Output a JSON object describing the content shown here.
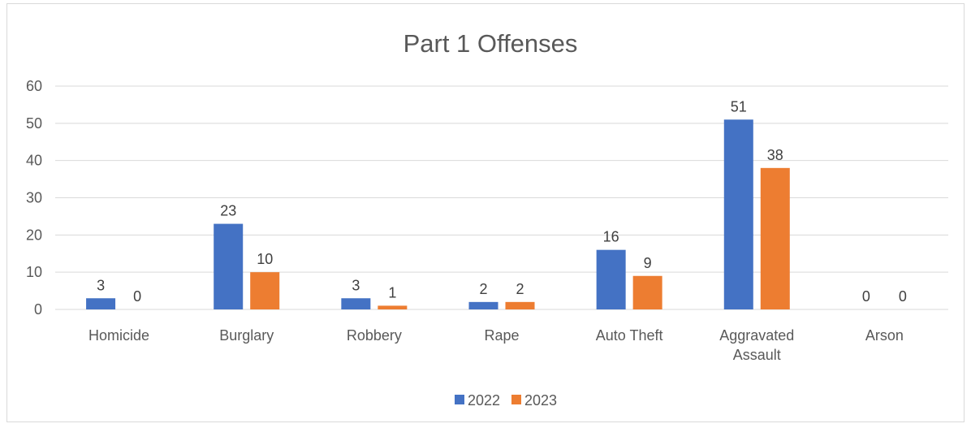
{
  "chart_data": {
    "type": "bar",
    "title": "Part 1 Offenses",
    "xlabel": "",
    "ylabel": "",
    "categories": [
      [
        "Homicide"
      ],
      [
        "Burglary"
      ],
      [
        "Robbery"
      ],
      [
        "Rape"
      ],
      [
        "Auto Theft"
      ],
      [
        "Aggravated",
        "Assault"
      ],
      [
        "Arson"
      ]
    ],
    "series": [
      {
        "name": "2022",
        "color": "#4472C4",
        "values": [
          3,
          23,
          3,
          2,
          16,
          51,
          0
        ]
      },
      {
        "name": "2023",
        "color": "#ED7D31",
        "values": [
          0,
          10,
          1,
          2,
          9,
          38,
          0
        ]
      }
    ],
    "ylim": [
      0,
      60
    ],
    "yticks": [
      0,
      10,
      20,
      30,
      40,
      50,
      60
    ],
    "grid": true,
    "legend": "bottom"
  }
}
